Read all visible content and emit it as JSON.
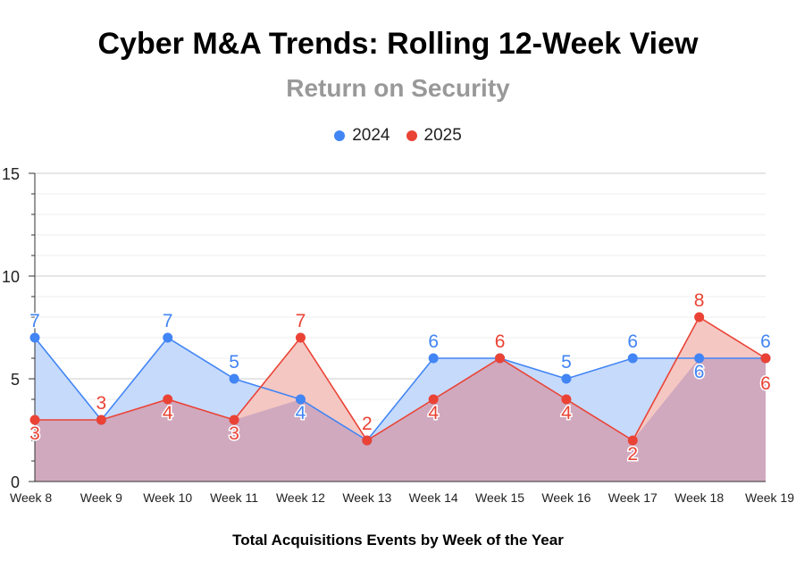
{
  "chart_data": {
    "type": "area",
    "title": "Cyber M&A Trends: Rolling 12-Week View",
    "subtitle": "Return on Security",
    "xlabel": "Total Acquisitions Events by Week of the Year",
    "ylabel": "",
    "ylim": [
      0,
      15
    ],
    "yticks": [
      "0",
      "5",
      "10",
      "15"
    ],
    "categories": [
      "Week 8",
      "Week 9",
      "Week 10",
      "Week 11",
      "Week 12",
      "Week 13",
      "Week 14",
      "Week 15",
      "Week 16",
      "Week 17",
      "Week 18",
      "Week 19"
    ],
    "series": [
      {
        "name": "2024",
        "color": "#4285f4",
        "fill": "#c6dafc",
        "values": [
          7,
          3,
          7,
          5,
          4,
          2,
          6,
          6,
          5,
          6,
          6,
          6
        ]
      },
      {
        "name": "2025",
        "color": "#ea4335",
        "fill": "#f4c7c3",
        "values": [
          3,
          3,
          4,
          3,
          7,
          2,
          4,
          6,
          4,
          2,
          8,
          6
        ]
      }
    ],
    "overlap_fill": "#d0a9be",
    "legend_position": "top"
  }
}
